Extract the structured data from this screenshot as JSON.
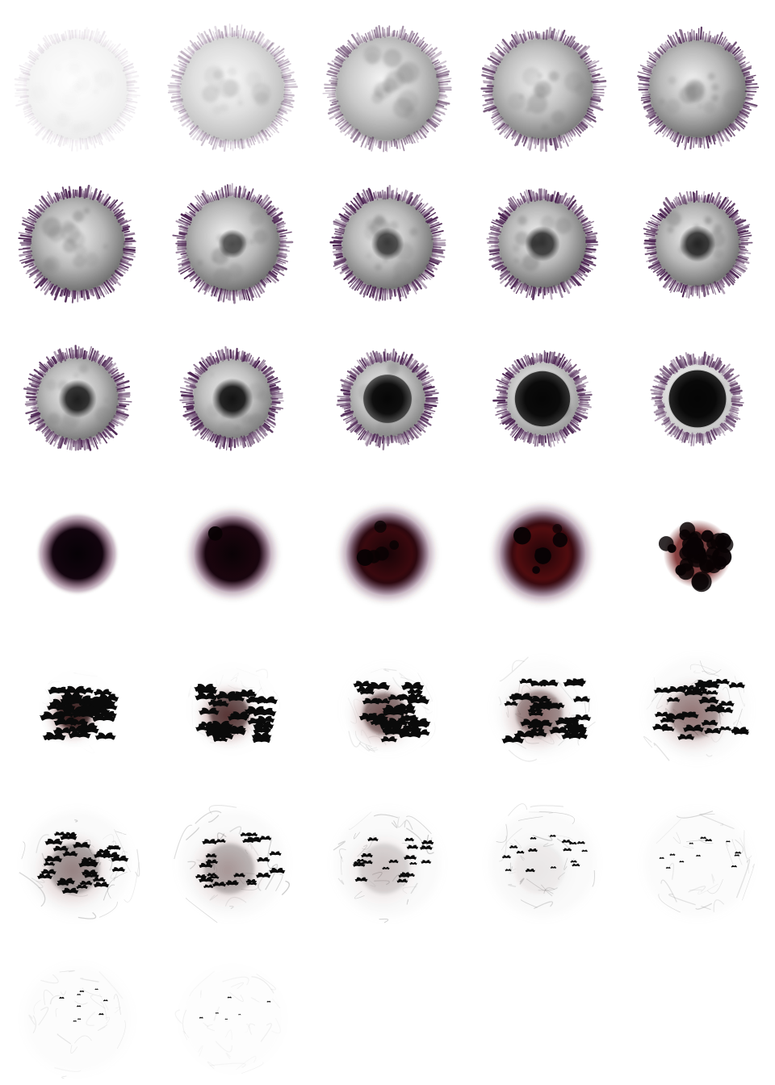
{
  "sheet": {
    "background": "#ffffff",
    "columns": 5,
    "frame_count": 32
  },
  "palette": {
    "moon_light": "#f2f2f2",
    "moon_mid": "#b8b8b8",
    "moon_dark": "#6a6a6a",
    "ring_purple": "#4a2350",
    "blood_red": "#6b1010",
    "dark_red": "#2a0508",
    "void_black": "#060206",
    "bat_black": "#0a0a0a",
    "wisp_gray": "#9a9a9a"
  },
  "frames": [
    {
      "phase": "moon",
      "moon": 0.12,
      "ring": 0.1,
      "shadow": 0.0,
      "radius": 0.33
    },
    {
      "phase": "moon",
      "moon": 0.45,
      "ring": 0.35,
      "shadow": 0.0,
      "radius": 0.34
    },
    {
      "phase": "moon",
      "moon": 0.75,
      "ring": 0.6,
      "shadow": 0.0,
      "radius": 0.34
    },
    {
      "phase": "moon",
      "moon": 0.9,
      "ring": 0.78,
      "shadow": 0.0,
      "radius": 0.33
    },
    {
      "phase": "moon",
      "moon": 1.0,
      "ring": 0.88,
      "shadow": 0.0,
      "radius": 0.32
    },
    {
      "phase": "moon",
      "moon": 1.0,
      "ring": 1.0,
      "shadow": 0.0,
      "radius": 0.31
    },
    {
      "phase": "moon",
      "moon": 1.0,
      "ring": 1.0,
      "shadow": 0.08,
      "radius": 0.31
    },
    {
      "phase": "moon",
      "moon": 1.0,
      "ring": 1.0,
      "shadow": 0.16,
      "radius": 0.3
    },
    {
      "phase": "moon",
      "moon": 1.0,
      "ring": 1.0,
      "shadow": 0.22,
      "radius": 0.29
    },
    {
      "phase": "moon",
      "moon": 1.0,
      "ring": 1.0,
      "shadow": 0.26,
      "radius": 0.28
    },
    {
      "phase": "moon",
      "moon": 0.95,
      "ring": 1.0,
      "shadow": 0.32,
      "radius": 0.27
    },
    {
      "phase": "moon",
      "moon": 0.9,
      "ring": 1.0,
      "shadow": 0.4,
      "radius": 0.26
    },
    {
      "phase": "moon",
      "moon": 0.85,
      "ring": 1.0,
      "shadow": 0.62,
      "radius": 0.25
    },
    {
      "phase": "moon",
      "moon": 0.7,
      "ring": 1.0,
      "shadow": 0.82,
      "radius": 0.24
    },
    {
      "phase": "moon",
      "moon": 0.4,
      "ring": 0.8,
      "shadow": 0.92,
      "radius": 0.23
    },
    {
      "phase": "void",
      "redness": 0.0,
      "softness": 0.15,
      "radius": 0.23
    },
    {
      "phase": "void",
      "redness": 0.1,
      "softness": 0.45,
      "radius": 0.25
    },
    {
      "phase": "void",
      "redness": 0.45,
      "softness": 0.55,
      "radius": 0.27
    },
    {
      "phase": "void",
      "redness": 0.7,
      "softness": 0.6,
      "radius": 0.28
    },
    {
      "phase": "burst",
      "redness": 0.8,
      "blobs": 30,
      "radius": 0.22
    },
    {
      "phase": "bats",
      "bats": 40,
      "scale": 1.0,
      "red": 0.9,
      "wisps": 0.1,
      "spread": 0.24
    },
    {
      "phase": "bats",
      "bats": 38,
      "scale": 0.95,
      "red": 0.7,
      "wisps": 0.2,
      "spread": 0.28
    },
    {
      "phase": "bats",
      "bats": 36,
      "scale": 0.9,
      "red": 0.55,
      "wisps": 0.3,
      "spread": 0.3
    },
    {
      "phase": "bats",
      "bats": 34,
      "scale": 0.85,
      "red": 0.45,
      "wisps": 0.45,
      "spread": 0.33
    },
    {
      "phase": "bats",
      "bats": 32,
      "scale": 0.8,
      "red": 0.4,
      "wisps": 0.55,
      "spread": 0.35
    },
    {
      "phase": "bats",
      "bats": 30,
      "scale": 0.72,
      "red": 0.35,
      "wisps": 0.65,
      "spread": 0.36
    },
    {
      "phase": "bats",
      "bats": 26,
      "scale": 0.62,
      "red": 0.28,
      "wisps": 0.7,
      "spread": 0.36
    },
    {
      "phase": "bats",
      "bats": 20,
      "scale": 0.5,
      "red": 0.15,
      "wisps": 0.7,
      "spread": 0.36
    },
    {
      "phase": "bats",
      "bats": 16,
      "scale": 0.38,
      "red": 0.05,
      "wisps": 0.65,
      "spread": 0.36
    },
    {
      "phase": "bats",
      "bats": 12,
      "scale": 0.28,
      "red": 0.0,
      "wisps": 0.55,
      "spread": 0.36
    },
    {
      "phase": "bats",
      "bats": 9,
      "scale": 0.22,
      "red": 0.0,
      "wisps": 0.35,
      "spread": 0.36
    },
    {
      "phase": "bats",
      "bats": 6,
      "scale": 0.18,
      "red": 0.0,
      "wisps": 0.2,
      "spread": 0.34
    }
  ]
}
